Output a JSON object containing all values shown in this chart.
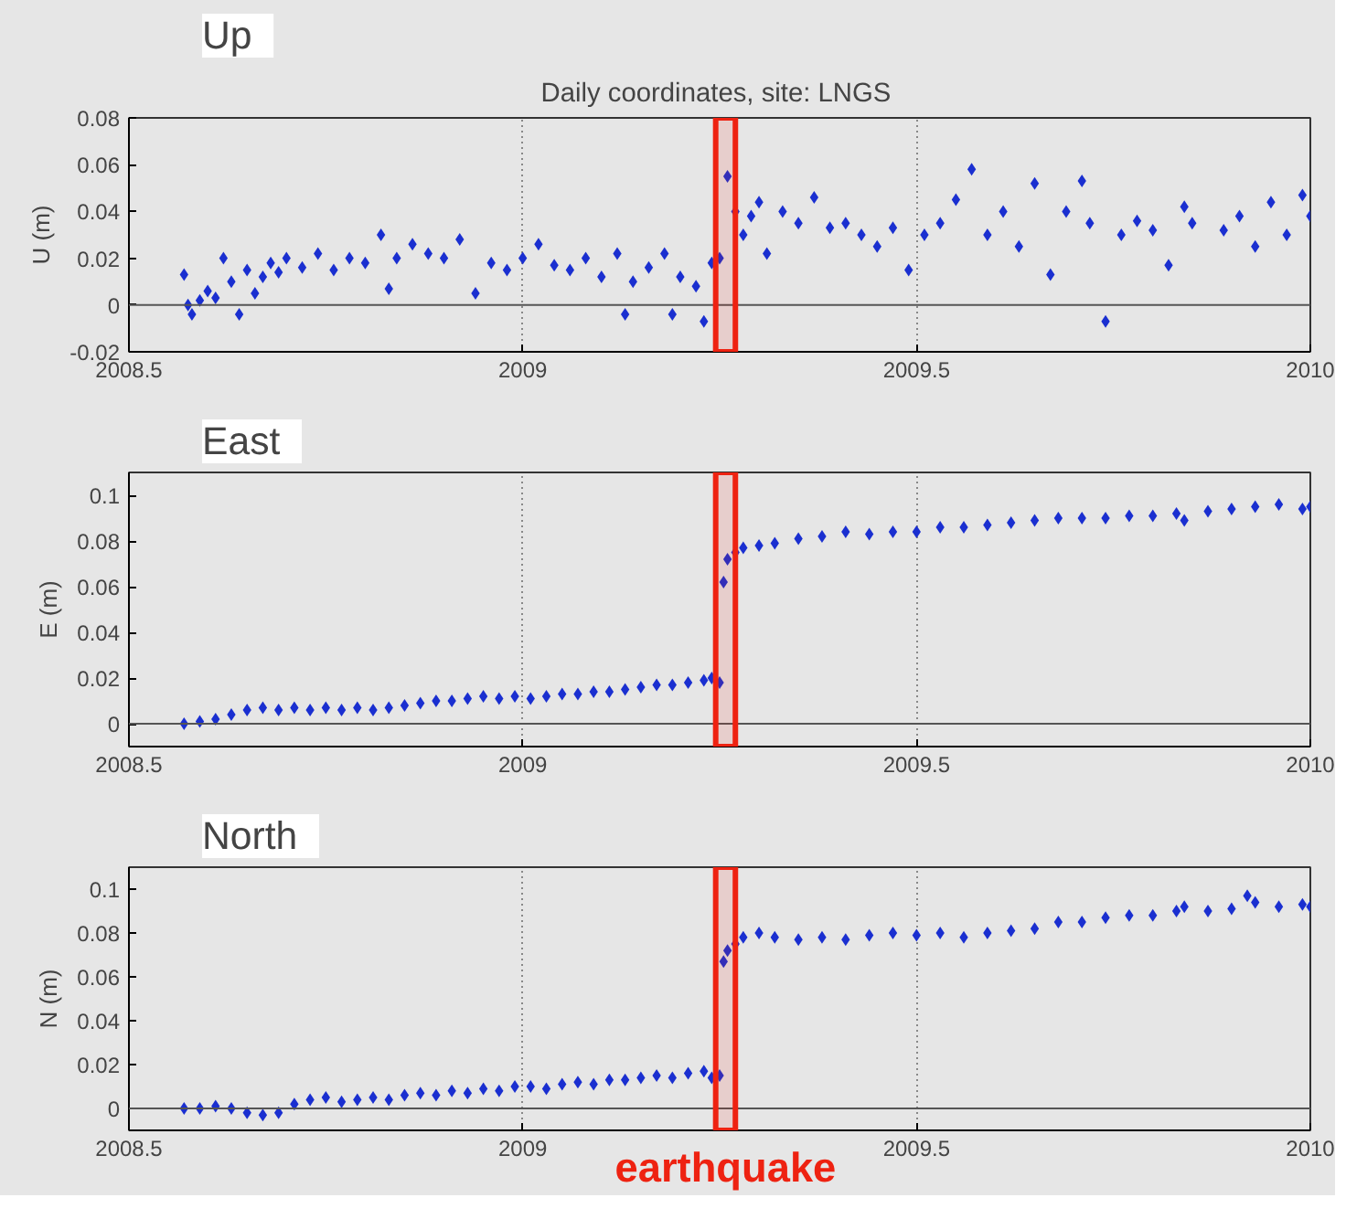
{
  "chart_data": [
    {
      "type": "scatter",
      "title": "Up",
      "subtitle": "Daily coordinates, site:  LNGS",
      "ylabel": "U (m)",
      "xlim": [
        2008.5,
        2010
      ],
      "xticks": [
        2008.5,
        2009,
        2009.5,
        2010
      ],
      "ylim": [
        -0.02,
        0.08
      ],
      "yticks": [
        -0.02,
        0,
        0.02,
        0.04,
        0.06,
        0.08
      ],
      "grid": "x",
      "marker": "diamond",
      "ref_lines": [
        {
          "axis": "y",
          "value": 0,
          "color": "#555555"
        }
      ],
      "bands": [
        {
          "axis": "x",
          "from": 2009.245,
          "to": 2009.27,
          "color": "#ee2211"
        }
      ],
      "series": [
        {
          "color": "#1a2fd0",
          "x": [
            2008.57,
            2008.575,
            2008.58,
            2008.59,
            2008.6,
            2008.61,
            2008.62,
            2008.63,
            2008.64,
            2008.65,
            2008.66,
            2008.67,
            2008.68,
            2008.69,
            2008.7,
            2008.72,
            2008.74,
            2008.76,
            2008.78,
            2008.8,
            2008.82,
            2008.83,
            2008.84,
            2008.86,
            2008.88,
            2008.9,
            2008.92,
            2008.94,
            2008.96,
            2008.98,
            2009.0,
            2009.02,
            2009.04,
            2009.06,
            2009.08,
            2009.1,
            2009.12,
            2009.13,
            2009.14,
            2009.16,
            2009.18,
            2009.19,
            2009.2,
            2009.22,
            2009.23,
            2009.24,
            2009.25,
            2009.26,
            2009.27,
            2009.28,
            2009.29,
            2009.3,
            2009.31,
            2009.33,
            2009.35,
            2009.37,
            2009.39,
            2009.41,
            2009.43,
            2009.45,
            2009.47,
            2009.49,
            2009.51,
            2009.53,
            2009.55,
            2009.57,
            2009.59,
            2009.61,
            2009.63,
            2009.65,
            2009.67,
            2009.69,
            2009.71,
            2009.72,
            2009.74,
            2009.76,
            2009.78,
            2009.8,
            2009.82,
            2009.84,
            2009.85,
            2009.89,
            2009.91,
            2009.93,
            2009.95,
            2009.97,
            2009.99,
            2010.0
          ],
          "values": [
            0.013,
            0.0,
            -0.004,
            0.002,
            0.006,
            0.003,
            0.02,
            0.01,
            -0.004,
            0.015,
            0.005,
            0.012,
            0.018,
            0.014,
            0.02,
            0.016,
            0.022,
            0.015,
            0.02,
            0.018,
            0.03,
            0.007,
            0.02,
            0.026,
            0.022,
            0.02,
            0.028,
            0.005,
            0.018,
            0.015,
            0.02,
            0.026,
            0.017,
            0.015,
            0.02,
            0.012,
            0.022,
            -0.004,
            0.01,
            0.016,
            0.022,
            -0.004,
            0.012,
            0.008,
            -0.007,
            0.018,
            0.02,
            0.055,
            0.04,
            0.03,
            0.038,
            0.044,
            0.022,
            0.04,
            0.035,
            0.046,
            0.033,
            0.035,
            0.03,
            0.025,
            0.033,
            0.015,
            0.03,
            0.035,
            0.045,
            0.058,
            0.03,
            0.04,
            0.025,
            0.052,
            0.013,
            0.04,
            0.053,
            0.035,
            -0.007,
            0.03,
            0.036,
            0.032,
            0.017,
            0.042,
            0.035,
            0.032,
            0.038,
            0.025,
            0.044,
            0.03,
            0.047,
            0.038
          ]
        }
      ]
    },
    {
      "type": "scatter",
      "title": "East",
      "ylabel": "E (m)",
      "xlim": [
        2008.5,
        2010
      ],
      "xticks": [
        2008.5,
        2009,
        2009.5,
        2010
      ],
      "ylim": [
        -0.01,
        0.11
      ],
      "yticks": [
        0,
        0.02,
        0.04,
        0.06,
        0.08,
        0.1
      ],
      "grid": "x",
      "marker": "diamond",
      "ref_lines": [
        {
          "axis": "y",
          "value": 0,
          "color": "#555555"
        }
      ],
      "bands": [
        {
          "axis": "x",
          "from": 2009.245,
          "to": 2009.27,
          "color": "#ee2211"
        }
      ],
      "series": [
        {
          "color": "#1a2fd0",
          "x": [
            2008.57,
            2008.59,
            2008.61,
            2008.63,
            2008.65,
            2008.67,
            2008.69,
            2008.71,
            2008.73,
            2008.75,
            2008.77,
            2008.79,
            2008.81,
            2008.83,
            2008.85,
            2008.87,
            2008.89,
            2008.91,
            2008.93,
            2008.95,
            2008.97,
            2008.99,
            2009.01,
            2009.03,
            2009.05,
            2009.07,
            2009.09,
            2009.11,
            2009.13,
            2009.15,
            2009.17,
            2009.19,
            2009.21,
            2009.23,
            2009.24,
            2009.25,
            2009.255,
            2009.26,
            2009.27,
            2009.28,
            2009.3,
            2009.32,
            2009.35,
            2009.38,
            2009.41,
            2009.44,
            2009.47,
            2009.5,
            2009.53,
            2009.56,
            2009.59,
            2009.62,
            2009.65,
            2009.68,
            2009.71,
            2009.74,
            2009.77,
            2009.8,
            2009.83,
            2009.84,
            2009.87,
            2009.9,
            2009.93,
            2009.96,
            2009.99,
            2010.0
          ],
          "values": [
            0.0,
            0.001,
            0.002,
            0.004,
            0.006,
            0.007,
            0.006,
            0.007,
            0.006,
            0.007,
            0.006,
            0.007,
            0.006,
            0.007,
            0.008,
            0.009,
            0.01,
            0.01,
            0.011,
            0.012,
            0.011,
            0.012,
            0.011,
            0.012,
            0.013,
            0.013,
            0.014,
            0.014,
            0.015,
            0.016,
            0.017,
            0.017,
            0.018,
            0.019,
            0.02,
            0.018,
            0.062,
            0.072,
            0.075,
            0.077,
            0.078,
            0.079,
            0.081,
            0.082,
            0.084,
            0.083,
            0.084,
            0.084,
            0.086,
            0.086,
            0.087,
            0.088,
            0.089,
            0.09,
            0.09,
            0.09,
            0.091,
            0.091,
            0.092,
            0.089,
            0.093,
            0.094,
            0.095,
            0.096,
            0.094,
            0.095
          ]
        }
      ]
    },
    {
      "type": "scatter",
      "title": "North",
      "ylabel": "N (m)",
      "xlim": [
        2008.5,
        2010
      ],
      "xticks": [
        2008.5,
        2009,
        2009.5,
        2010
      ],
      "ylim": [
        -0.01,
        0.11
      ],
      "yticks": [
        0,
        0.02,
        0.04,
        0.06,
        0.08,
        0.1
      ],
      "grid": "x",
      "marker": "diamond",
      "ref_lines": [
        {
          "axis": "y",
          "value": 0,
          "color": "#555555"
        }
      ],
      "bands": [
        {
          "axis": "x",
          "from": 2009.245,
          "to": 2009.27,
          "color": "#ee2211",
          "label": "earthquake"
        }
      ],
      "series": [
        {
          "color": "#1a2fd0",
          "x": [
            2008.57,
            2008.59,
            2008.61,
            2008.63,
            2008.65,
            2008.67,
            2008.69,
            2008.71,
            2008.73,
            2008.75,
            2008.77,
            2008.79,
            2008.81,
            2008.83,
            2008.85,
            2008.87,
            2008.89,
            2008.91,
            2008.93,
            2008.95,
            2008.97,
            2008.99,
            2009.01,
            2009.03,
            2009.05,
            2009.07,
            2009.09,
            2009.11,
            2009.13,
            2009.15,
            2009.17,
            2009.19,
            2009.21,
            2009.23,
            2009.24,
            2009.25,
            2009.255,
            2009.26,
            2009.27,
            2009.28,
            2009.3,
            2009.32,
            2009.35,
            2009.38,
            2009.41,
            2009.44,
            2009.47,
            2009.5,
            2009.53,
            2009.56,
            2009.59,
            2009.62,
            2009.65,
            2009.68,
            2009.71,
            2009.74,
            2009.77,
            2009.8,
            2009.83,
            2009.84,
            2009.87,
            2009.9,
            2009.92,
            2009.93,
            2009.96,
            2009.99,
            2010.0
          ],
          "values": [
            0.0,
            0.0,
            0.001,
            0.0,
            -0.002,
            -0.003,
            -0.002,
            0.002,
            0.004,
            0.005,
            0.003,
            0.004,
            0.005,
            0.004,
            0.006,
            0.007,
            0.006,
            0.008,
            0.007,
            0.009,
            0.008,
            0.01,
            0.01,
            0.009,
            0.011,
            0.012,
            0.011,
            0.013,
            0.013,
            0.014,
            0.015,
            0.014,
            0.016,
            0.017,
            0.014,
            0.015,
            0.067,
            0.072,
            0.075,
            0.078,
            0.08,
            0.078,
            0.077,
            0.078,
            0.077,
            0.079,
            0.08,
            0.079,
            0.08,
            0.078,
            0.08,
            0.081,
            0.082,
            0.085,
            0.085,
            0.087,
            0.088,
            0.088,
            0.09,
            0.092,
            0.09,
            0.091,
            0.097,
            0.094,
            0.092,
            0.093,
            0.092
          ]
        }
      ]
    }
  ]
}
